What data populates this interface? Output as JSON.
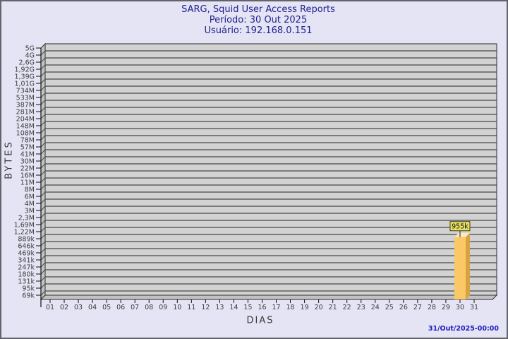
{
  "window": {
    "bg": "#E4E4F5",
    "border_color": "#63636B"
  },
  "header": {
    "title": "SARG, Squid User Access Reports",
    "period_line": "Período: 30 Out 2025",
    "user_line": "Usuário: 192.168.0.151",
    "text_color": "#21218F"
  },
  "chart_data": {
    "type": "bar",
    "title": "SARG, Squid User Access Reports",
    "xlabel": "DIAS",
    "ylabel": "BYTES",
    "y_axis": {
      "title": "BYTES",
      "scale": "log",
      "tick_labels": [
        "5G",
        "4G",
        "2,6G",
        "1,92G",
        "1,39G",
        "1,01G",
        "734M",
        "533M",
        "387M",
        "281M",
        "204M",
        "148M",
        "108M",
        "78M",
        "57M",
        "41M",
        "30M",
        "22M",
        "16M",
        "11M",
        "8M",
        "6M",
        "4M",
        "3M",
        "2,3M",
        "1,69M",
        "1,22M",
        "889k",
        "646k",
        "469k",
        "341k",
        "247k",
        "180k",
        "131k",
        "95k",
        "69k"
      ]
    },
    "x_axis": {
      "title": "DIAS",
      "tick_labels": [
        "01",
        "02",
        "03",
        "04",
        "05",
        "06",
        "07",
        "08",
        "09",
        "10",
        "11",
        "12",
        "13",
        "14",
        "15",
        "16",
        "17",
        "18",
        "19",
        "20",
        "21",
        "22",
        "23",
        "24",
        "25",
        "26",
        "27",
        "28",
        "29",
        "30",
        "31"
      ]
    },
    "bars": [
      {
        "day": "30",
        "value_label": "955k",
        "value_bytes": 955000
      }
    ],
    "legend": null,
    "grid": "on",
    "colors": {
      "plot_back_wall": "#D2D2D2",
      "side_wall": "#C2C2C2",
      "gridline": "#4A4A4A",
      "frame": "#2E2E2E",
      "axis": "#111111",
      "tick_text": "#3C3C3C",
      "bar_front": "#FBC867",
      "bar_side": "#D8A23F",
      "bar_top": "#FCE9BE",
      "annotation_bg": "#E7E163",
      "annotation_border": "#3A3A10",
      "annotation_text": "#101010"
    }
  },
  "footer": {
    "timestamp": "31/Out/2025-00:00",
    "text_color": "#1D1DBE"
  }
}
